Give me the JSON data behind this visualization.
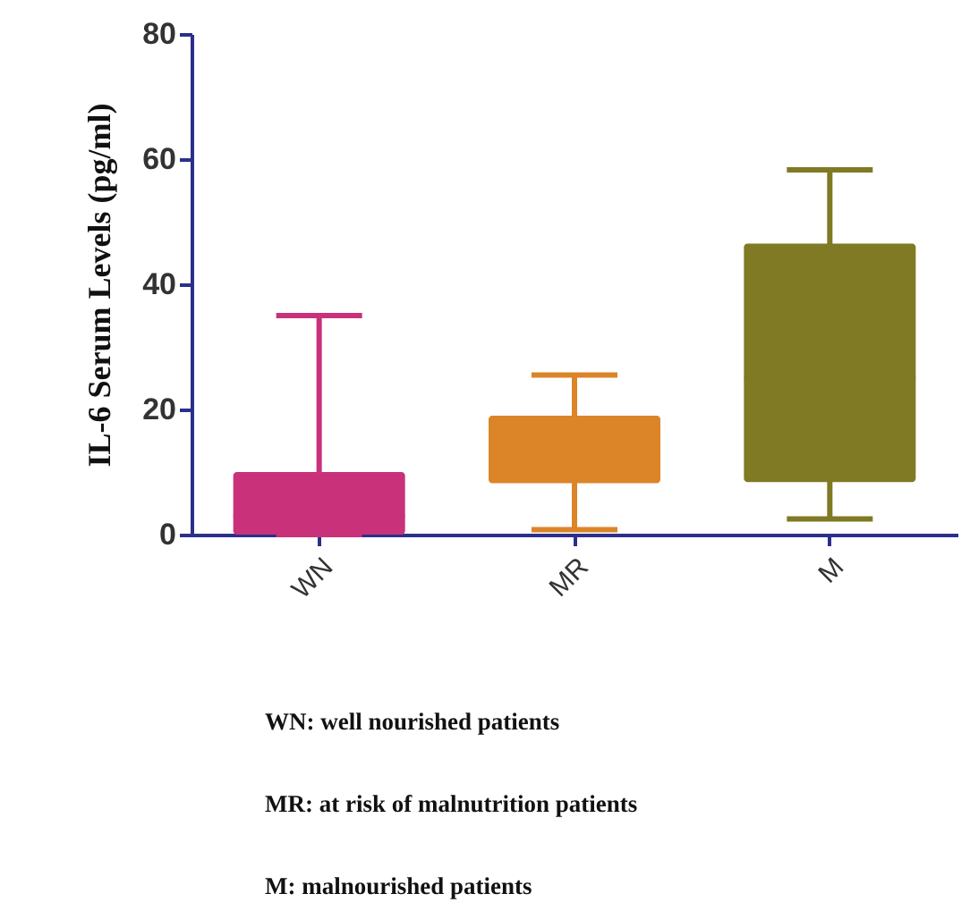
{
  "chart_data": {
    "type": "box",
    "ylabel": "IL-6 Serum Levels (pg/ml)",
    "categories": [
      "WN",
      "MR",
      "M"
    ],
    "colors": [
      "#c9317a",
      "#db8428",
      "#7f7a23"
    ],
    "boxes": [
      {
        "low": 0,
        "q1": 0,
        "median": 3,
        "q3": 10,
        "high": 35
      },
      {
        "low": 0.8,
        "q1": 8.2,
        "median": 12.2,
        "q3": 19,
        "high": 25.5
      },
      {
        "low": 2.5,
        "q1": 8.4,
        "median": 25,
        "q3": 46.5,
        "high": 58.3
      }
    ],
    "ylim": [
      0,
      80
    ],
    "yticks": [
      0,
      20,
      40,
      60,
      80
    ],
    "grid": false,
    "annotations": [
      "WN: well nourished patients",
      "MR: at risk of malnutrition patients",
      "M: malnourished patients"
    ]
  }
}
